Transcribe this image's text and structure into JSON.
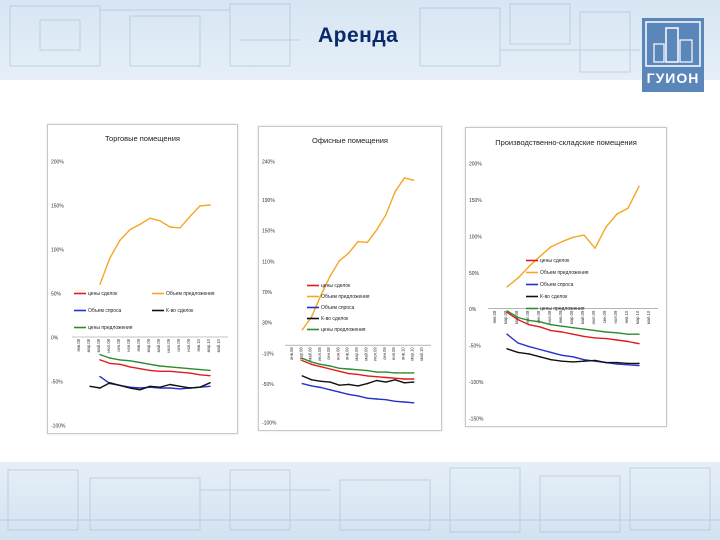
{
  "page": {
    "title": "Аренда",
    "logo_text": "ГУИОН"
  },
  "colors": {
    "prices_deals": "#e01b1b",
    "prices_offers": "#2e8b2e",
    "supply": "#f5a623",
    "demand": "#2233cc",
    "coef": "#111111",
    "title": "#0b2a6b",
    "logo": "#5a86b9"
  },
  "chart_data": [
    {
      "type": "line",
      "title": "Торговые помещения",
      "ylim": [
        -100,
        200
      ],
      "yticks": [
        -100,
        -50,
        0,
        50,
        100,
        150,
        200
      ],
      "ytick_labels": [
        "-100%",
        "-50%",
        "0%",
        "50%",
        "100%",
        "150%",
        "200%"
      ],
      "categories": [
        "янв.08",
        "мар.08",
        "май.08",
        "июл.08",
        "сен.08",
        "ноя.08",
        "янв.09",
        "мар.09",
        "май.09",
        "июл.09",
        "сен.09",
        "ноя.09",
        "янв.10",
        "мар.10",
        "май.10"
      ],
      "legend": [
        "цены сделок",
        "Объем предложения",
        "Объем спроса",
        "К-во сделок",
        "цены предложения"
      ],
      "series": [
        {
          "name": "цены сделок",
          "color": "#e01b1b",
          "x": [
            2,
            3,
            4,
            5,
            6,
            7,
            8,
            9,
            10,
            11,
            12,
            13
          ],
          "values": [
            -26,
            -30,
            -31,
            -34,
            -36,
            -38,
            -39,
            -39,
            -40,
            -41,
            -43,
            -44
          ]
        },
        {
          "name": "цены предложения",
          "color": "#2e8b2e",
          "x": [
            2,
            3,
            4,
            5,
            6,
            7,
            8,
            9,
            10,
            11,
            12,
            13
          ],
          "values": [
            -20,
            -24,
            -26,
            -27,
            -29,
            -31,
            -33,
            -34,
            -35,
            -36,
            -37,
            -38
          ]
        },
        {
          "name": "Объем предложения",
          "color": "#f5a623",
          "x": [
            2,
            3,
            4,
            5,
            6,
            7,
            8,
            9,
            10,
            11,
            12,
            13
          ],
          "values": [
            60,
            90,
            110,
            122,
            128,
            135,
            132,
            125,
            124,
            137,
            149,
            150
          ]
        },
        {
          "name": "Объем спроса",
          "color": "#2233cc",
          "x": [
            2,
            3,
            4,
            5,
            6,
            7,
            8,
            9,
            10,
            11,
            12,
            13
          ],
          "values": [
            -45,
            -53,
            -55,
            -57,
            -58,
            -57,
            -58,
            -58,
            -59,
            -58,
            -57,
            -56
          ]
        },
        {
          "name": "К-во сделок",
          "color": "#111111",
          "x": [
            1,
            2,
            3,
            4,
            5,
            6,
            7,
            8,
            9,
            10,
            11,
            12,
            13
          ],
          "values": [
            -56,
            -58,
            -52,
            -55,
            -58,
            -60,
            -56,
            -57,
            -54,
            -56,
            -58,
            -57,
            -52
          ]
        }
      ]
    },
    {
      "type": "line",
      "title": "Офисные помещения",
      "ylim": [
        -100,
        240
      ],
      "yticks": [
        -100,
        -50,
        -10,
        30,
        70,
        110,
        150,
        190,
        240
      ],
      "ytick_labels": [
        "-100%",
        "-50%",
        "-10%",
        "30%",
        "70%",
        "110%",
        "150%",
        "190%",
        "240%"
      ],
      "categories": [
        "янв.08",
        "мар.08",
        "май.08",
        "июл.08",
        "сен.08",
        "ноя.08",
        "янв.09",
        "мар.09",
        "май.09",
        "июл.09",
        "сен.09",
        "ноя.09",
        "янв.10",
        "мар.10",
        "май.10"
      ],
      "legend": [
        "цены сделок",
        "Объем предложения",
        "Объем спроса",
        "К-во сделок",
        "цены предложения"
      ],
      "series": [
        {
          "name": "цены сделок",
          "color": "#e01b1b",
          "x": [
            1,
            2,
            3,
            4,
            5,
            6,
            7,
            8,
            9,
            10,
            11,
            12,
            13
          ],
          "values": [
            -20,
            -25,
            -28,
            -31,
            -34,
            -37,
            -38,
            -40,
            -41,
            -42,
            -43,
            -44,
            -44
          ]
        },
        {
          "name": "цены предложения",
          "color": "#2e8b2e",
          "x": [
            1,
            2,
            3,
            4,
            5,
            6,
            7,
            8,
            9,
            10,
            11,
            12,
            13
          ],
          "values": [
            -17,
            -22,
            -25,
            -27,
            -30,
            -31,
            -32,
            -33,
            -35,
            -35,
            -36,
            -36,
            -36
          ]
        },
        {
          "name": "Объем предложения",
          "color": "#f5a623",
          "x": [
            1,
            2,
            3,
            4,
            5,
            6,
            7,
            8,
            9,
            10,
            11,
            12,
            13
          ],
          "values": [
            20,
            37,
            65,
            90,
            110,
            120,
            135,
            134,
            150,
            170,
            200,
            218,
            215
          ]
        },
        {
          "name": "Объем спроса",
          "color": "#2233cc",
          "x": [
            1,
            2,
            3,
            4,
            5,
            6,
            7,
            8,
            9,
            10,
            11,
            12,
            13
          ],
          "values": [
            -50,
            -53,
            -55,
            -58,
            -61,
            -64,
            -66,
            -69,
            -70,
            -71,
            -73,
            -74,
            -75
          ]
        },
        {
          "name": "К-во сделок",
          "color": "#111111",
          "x": [
            1,
            2,
            3,
            4,
            5,
            6,
            7,
            8,
            9,
            10,
            11,
            12,
            13
          ],
          "values": [
            -40,
            -45,
            -47,
            -48,
            -52,
            -51,
            -53,
            -50,
            -46,
            -48,
            -45,
            -49,
            -48
          ]
        }
      ]
    },
    {
      "type": "line",
      "title": "Производственно-складские помещения",
      "ylim": [
        -150,
        200
      ],
      "yticks": [
        -150,
        -100,
        -50,
        0,
        50,
        100,
        150,
        200
      ],
      "ytick_labels": [
        "-150%",
        "-100%",
        "-50%",
        "0%",
        "50%",
        "100%",
        "150%",
        "200%"
      ],
      "categories": [
        "янв.08",
        "мар.08",
        "май.08",
        "июл.08",
        "сен.08",
        "ноя.08",
        "янв.09",
        "мар.09",
        "май.09",
        "июл.09",
        "сен.09",
        "ноя.09",
        "янв.10",
        "мар.10",
        "май.10"
      ],
      "legend": [
        "цены сделок",
        "Объем предложения",
        "Объем спроса",
        "К-во сделок",
        "цены предложения"
      ],
      "series": [
        {
          "name": "цены сделок",
          "color": "#e01b1b",
          "x": [
            1,
            2,
            3,
            4,
            5,
            6,
            7,
            8,
            9,
            10,
            11,
            12,
            13
          ],
          "values": [
            -5,
            -15,
            -22,
            -25,
            -30,
            -32,
            -35,
            -38,
            -40,
            -41,
            -43,
            -45,
            -48
          ]
        },
        {
          "name": "цены предложения",
          "color": "#2e8b2e",
          "x": [
            1,
            2,
            3,
            4,
            5,
            6,
            7,
            8,
            9,
            10,
            11,
            12,
            13
          ],
          "values": [
            -3,
            -12,
            -16,
            -18,
            -22,
            -24,
            -26,
            -28,
            -30,
            -32,
            -33,
            -35,
            -35
          ]
        },
        {
          "name": "Объем предложения",
          "color": "#f5a623",
          "x": [
            1,
            2,
            3,
            4,
            5,
            6,
            7,
            8,
            9,
            10,
            11,
            12,
            13
          ],
          "values": [
            30,
            42,
            58,
            72,
            85,
            92,
            98,
            101,
            83,
            112,
            130,
            138,
            168
          ]
        },
        {
          "name": "Объем спроса",
          "color": "#2233cc",
          "x": [
            1,
            2,
            3,
            4,
            5,
            6,
            7,
            8,
            9,
            10,
            11,
            12,
            13
          ],
          "values": [
            -35,
            -47,
            -52,
            -56,
            -60,
            -64,
            -66,
            -70,
            -72,
            -74,
            -76,
            -77,
            -78
          ]
        },
        {
          "name": "К-во сделок",
          "color": "#111111",
          "x": [
            1,
            2,
            3,
            4,
            5,
            6,
            7,
            8,
            9,
            10,
            11,
            12,
            13
          ],
          "values": [
            -55,
            -60,
            -62,
            -66,
            -70,
            -72,
            -73,
            -72,
            -71,
            -74,
            -74,
            -75,
            -75
          ]
        }
      ]
    }
  ]
}
